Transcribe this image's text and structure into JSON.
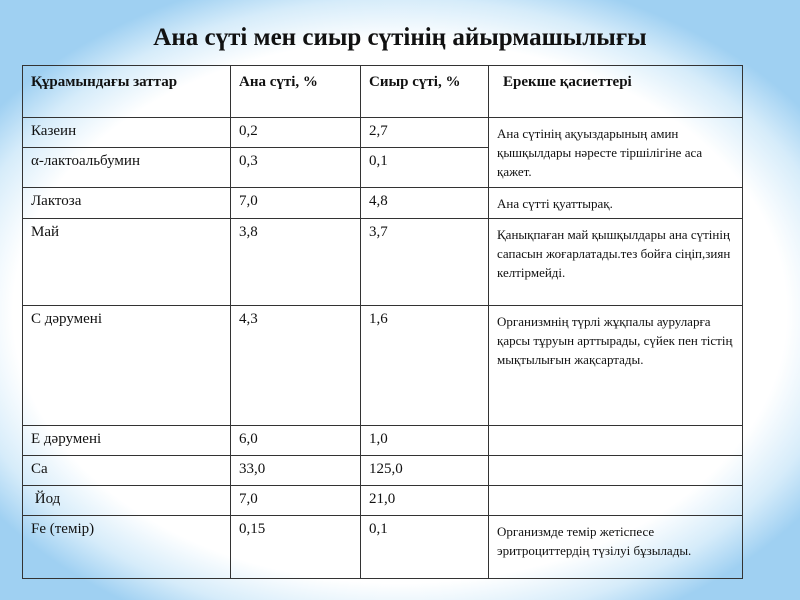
{
  "title": "Ана сүті мен сиыр сүтінің  айырмашылығы",
  "table": {
    "headers": [
      "Құрамындағы заттар",
      "Ана сүті, %",
      "Сиыр сүті, %",
      "Ерекше қасиеттері"
    ],
    "rows": [
      {
        "name": "Казеин",
        "mother": "0,2",
        "cow": "2,7",
        "desc": "Ана сүтінің ақуыздарының амин қышқылдары нәресте тіршілігіне аса қажет."
      },
      {
        "name": "α-лактоальбумин",
        "mother": "0,3",
        "cow": "0,1"
      },
      {
        "name": "Лактоза",
        "mother": "7,0",
        "cow": "4,8",
        "desc": "Ана сүтті қуаттырақ."
      },
      {
        "name": "Май",
        "mother": "3,8",
        "cow": "3,7",
        "desc": "Қанықпаған май қышқылдары ана сүтінің сапасын жоғарлатады.тез бойға сіңіп,зиян келтірмейді."
      },
      {
        "name": "С дәрумені",
        "mother": "4,3",
        "cow": "1,6",
        "desc": "Организмнің түрлі жұқпалы ауруларға  қарсы тұруын  арттырады, сүйек  пен тістің  мықтылығын жақсартады."
      },
      {
        "name": "Е  дәрумені",
        "mother": "6,0",
        "cow": "1,0",
        "desc": ""
      },
      {
        "name": "Са",
        "mother": "33,0",
        "cow": "125,0",
        "desc": ""
      },
      {
        "name": " Йод",
        "mother": "7,0",
        "cow": "21,0",
        "desc": ""
      },
      {
        "name": "Fe (темір)",
        "mother": "0,15",
        "cow": "0,1",
        "desc": "Организмде темір жетіспесе эритроциттердің түзілуі бұзылады."
      }
    ]
  }
}
